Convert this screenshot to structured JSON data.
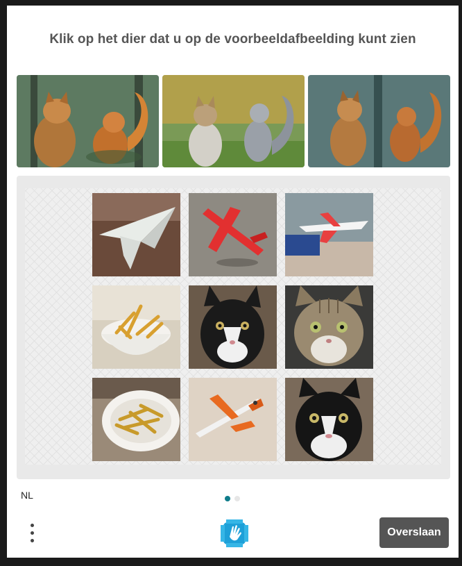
{
  "prompt": {
    "text": "Klik op het dier dat u op de voorbeeldafbeelding kunt zien"
  },
  "examples": [
    {
      "icon": "cat-and-squirrel-example-icon"
    },
    {
      "icon": "cat-and-squirrel-example-icon"
    },
    {
      "icon": "cat-and-squirrel-example-icon"
    }
  ],
  "grid": {
    "tiles": [
      {
        "icon": "paper-airplane-icon"
      },
      {
        "icon": "red-toy-airplane-icon"
      },
      {
        "icon": "toy-jet-icon"
      },
      {
        "icon": "fries-bowl-icon"
      },
      {
        "icon": "black-white-cat-icon"
      },
      {
        "icon": "tabby-cat-icon"
      },
      {
        "icon": "fries-bowl-icon"
      },
      {
        "icon": "orange-toy-airplane-icon"
      },
      {
        "icon": "black-white-cat-icon"
      }
    ]
  },
  "footer": {
    "language": "NL",
    "page_indicator": {
      "current": 1,
      "total": 2
    },
    "skip_label": "Overslaan"
  },
  "colors": {
    "accent": "#0f7c8a",
    "button": "#555555",
    "dot_inactive": "#e6e6e6"
  }
}
